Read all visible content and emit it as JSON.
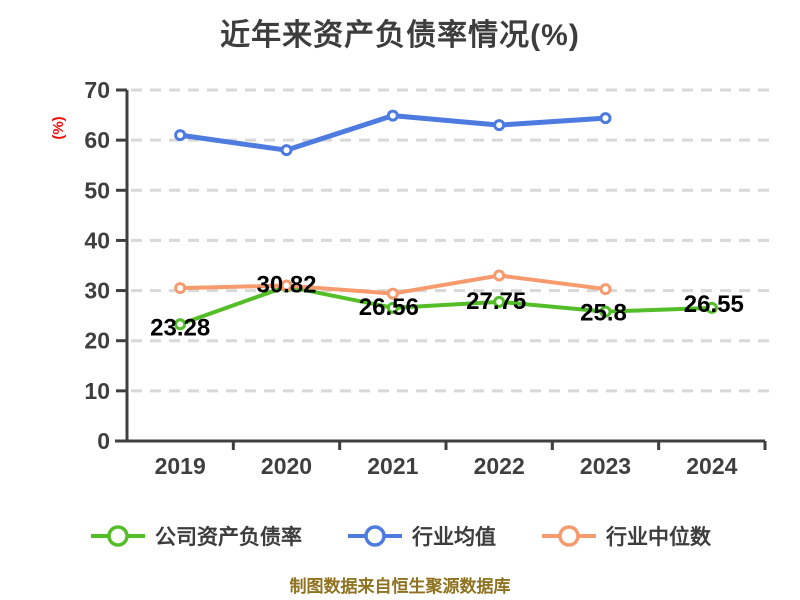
{
  "title": "近年来资产负债率情况(%)",
  "footer": {
    "text": "制图数据来自恒生聚源数据库",
    "color": "#8E7220"
  },
  "colors": {
    "title_text": "#3d3d3d",
    "axis": "#3f3f3f",
    "gridline": "#d8d8d8",
    "ylabel_red": "#F20D0D",
    "company_green": "#54BE29",
    "industry_avg_blue": "#4E7BE0",
    "industry_median_orange": "#F79B6E",
    "value_label": "#000000",
    "footer_gold": "#8E7220"
  },
  "chart_data": {
    "type": "line",
    "title": "近年来资产负债率情况(%)",
    "xlabel": "",
    "ylabel": "(%)",
    "categories": [
      "2019",
      "2020",
      "2021",
      "2022",
      "2023",
      "2024"
    ],
    "ylim": [
      0,
      70
    ],
    "ytick_step": 10,
    "yticks": [
      0,
      10,
      20,
      30,
      40,
      50,
      60,
      70
    ],
    "grid": "horizontal-dashed",
    "legend_position": "bottom",
    "series": [
      {
        "id": "company",
        "name": "公司资产负债率",
        "color": "#54BE29",
        "line_width": 4,
        "values": [
          23.28,
          30.82,
          26.56,
          27.75,
          25.8,
          26.55
        ],
        "point_labels": [
          "23.28",
          "30.82",
          "26.56",
          "27.75",
          "25.8",
          "26.55"
        ]
      },
      {
        "id": "industry_avg",
        "name": "行业均值",
        "color": "#4E7BE0",
        "line_width": 5,
        "values": [
          61.0,
          58.0,
          64.9,
          63.0,
          64.4,
          null
        ],
        "point_labels": null
      },
      {
        "id": "industry_median",
        "name": "行业中位数",
        "color": "#F79B6E",
        "line_width": 4,
        "values": [
          30.5,
          31.0,
          29.4,
          33.0,
          30.3,
          null
        ],
        "point_labels": null
      }
    ]
  }
}
